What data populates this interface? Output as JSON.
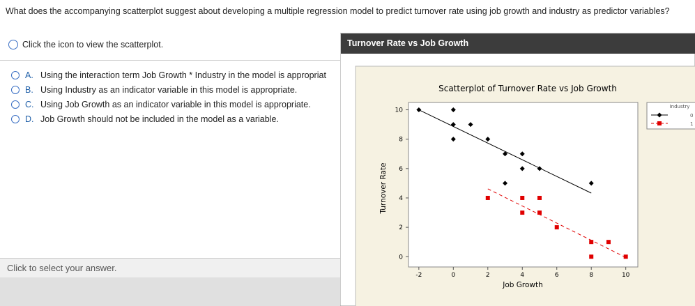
{
  "question": "What does the accompanying scatterplot suggest about developing a multiple regression model to predict turnover rate using job growth and industry as predictor variables?",
  "icon_hint": "Click the icon to view the scatterplot.",
  "options": [
    {
      "letter": "A.",
      "text": "Using the interaction term Job Growth * Industry in the model is appropriat"
    },
    {
      "letter": "B.",
      "text": "Using Industry as an indicator variable in this model is appropriate."
    },
    {
      "letter": "C.",
      "text": "Using Job Growth as an indicator variable in this model is appropriate."
    },
    {
      "letter": "D.",
      "text": "Job Growth should not be included in the model as a variable."
    }
  ],
  "footer": "Click to select your answer.",
  "window_title": "Turnover Rate vs Job Growth",
  "chart_data": {
    "type": "scatter",
    "title": "Scatterplot of Turnover Rate vs Job Growth",
    "x_label": "Job Growth",
    "y_label": "Turnover Rate",
    "legend_title": "Industry",
    "xlim": [
      -2.6,
      10.7
    ],
    "ylim": [
      -0.7,
      10.5
    ],
    "xticks": [
      -2,
      0,
      2,
      4,
      6,
      8,
      10
    ],
    "yticks": [
      0,
      2,
      4,
      6,
      8,
      10
    ],
    "series": [
      {
        "name": "0",
        "color": "#000000",
        "marker": "diamond",
        "x": [
          -2,
          0,
          0,
          1,
          0,
          2,
          3,
          4,
          4,
          5,
          3,
          8
        ],
        "values": [
          10,
          10,
          9,
          9,
          8,
          8,
          7,
          7,
          6,
          6,
          5,
          5
        ],
        "fit": {
          "x": [
            -2,
            8
          ],
          "values": [
            10,
            4.33
          ]
        }
      },
      {
        "name": "1",
        "color": "#e00000",
        "marker": "square",
        "x": [
          2,
          4,
          5,
          4,
          5,
          6,
          8,
          9,
          8,
          10
        ],
        "values": [
          4,
          4,
          4,
          3,
          3,
          2,
          1,
          1,
          0,
          0
        ],
        "fit": {
          "x": [
            2,
            10
          ],
          "values": [
            4.62,
            -0.05
          ]
        }
      }
    ]
  }
}
